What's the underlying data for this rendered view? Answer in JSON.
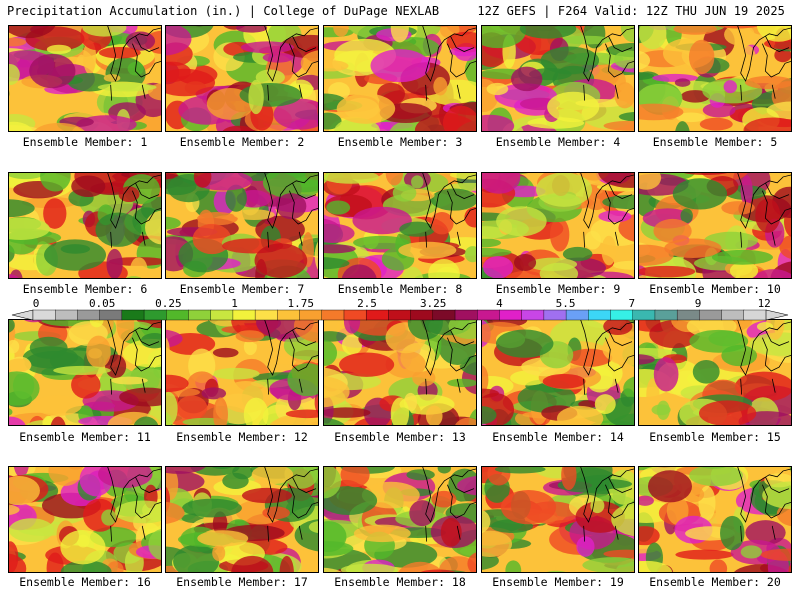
{
  "header": {
    "left": "Precipitation Accumulation (in.) | College of DuPage NEXLAB",
    "right": "12Z GEFS | F264 Valid: 12Z THU JUN 19 2025"
  },
  "members": [
    {
      "label": "Ensemble Member: 1"
    },
    {
      "label": "Ensemble Member: 2"
    },
    {
      "label": "Ensemble Member: 3"
    },
    {
      "label": "Ensemble Member: 4"
    },
    {
      "label": "Ensemble Member: 5"
    },
    {
      "label": "Ensemble Member: 6"
    },
    {
      "label": "Ensemble Member: 7"
    },
    {
      "label": "Ensemble Member: 8"
    },
    {
      "label": "Ensemble Member: 9"
    },
    {
      "label": "Ensemble Member: 10"
    },
    {
      "label": "Ensemble Member: 11"
    },
    {
      "label": "Ensemble Member: 12"
    },
    {
      "label": "Ensemble Member: 13"
    },
    {
      "label": "Ensemble Member: 14"
    },
    {
      "label": "Ensemble Member: 15"
    },
    {
      "label": "Ensemble Member: 16"
    },
    {
      "label": "Ensemble Member: 17"
    },
    {
      "label": "Ensemble Member: 18"
    },
    {
      "label": "Ensemble Member: 19"
    },
    {
      "label": "Ensemble Member: 20"
    }
  ],
  "colorbar": {
    "labels": [
      "0",
      "0.05",
      "0.25",
      "1",
      "1.75",
      "2.5",
      "3.25",
      "4",
      "5.5",
      "7",
      "9",
      "12"
    ],
    "colors": [
      "#d9d9d9",
      "#bdbdbd",
      "#9a9a9a",
      "#7a7a7a",
      "#1a7a1a",
      "#2e9a2e",
      "#52b82a",
      "#8fd13a",
      "#c8e640",
      "#f2f23c",
      "#fde048",
      "#fcc23a",
      "#f9a030",
      "#f57a2a",
      "#ef4a24",
      "#e01a1a",
      "#c00f1a",
      "#9e0a1e",
      "#7c0a28",
      "#a01060",
      "#c81890",
      "#e020c8",
      "#c846e6",
      "#a070f0",
      "#6aa0f6",
      "#3cd6f6",
      "#36f0e6",
      "#3ab8b0",
      "#5aa09a",
      "#7a8a88",
      "#9a9a9a",
      "#bdbdbd",
      "#d6d6d6"
    ]
  }
}
